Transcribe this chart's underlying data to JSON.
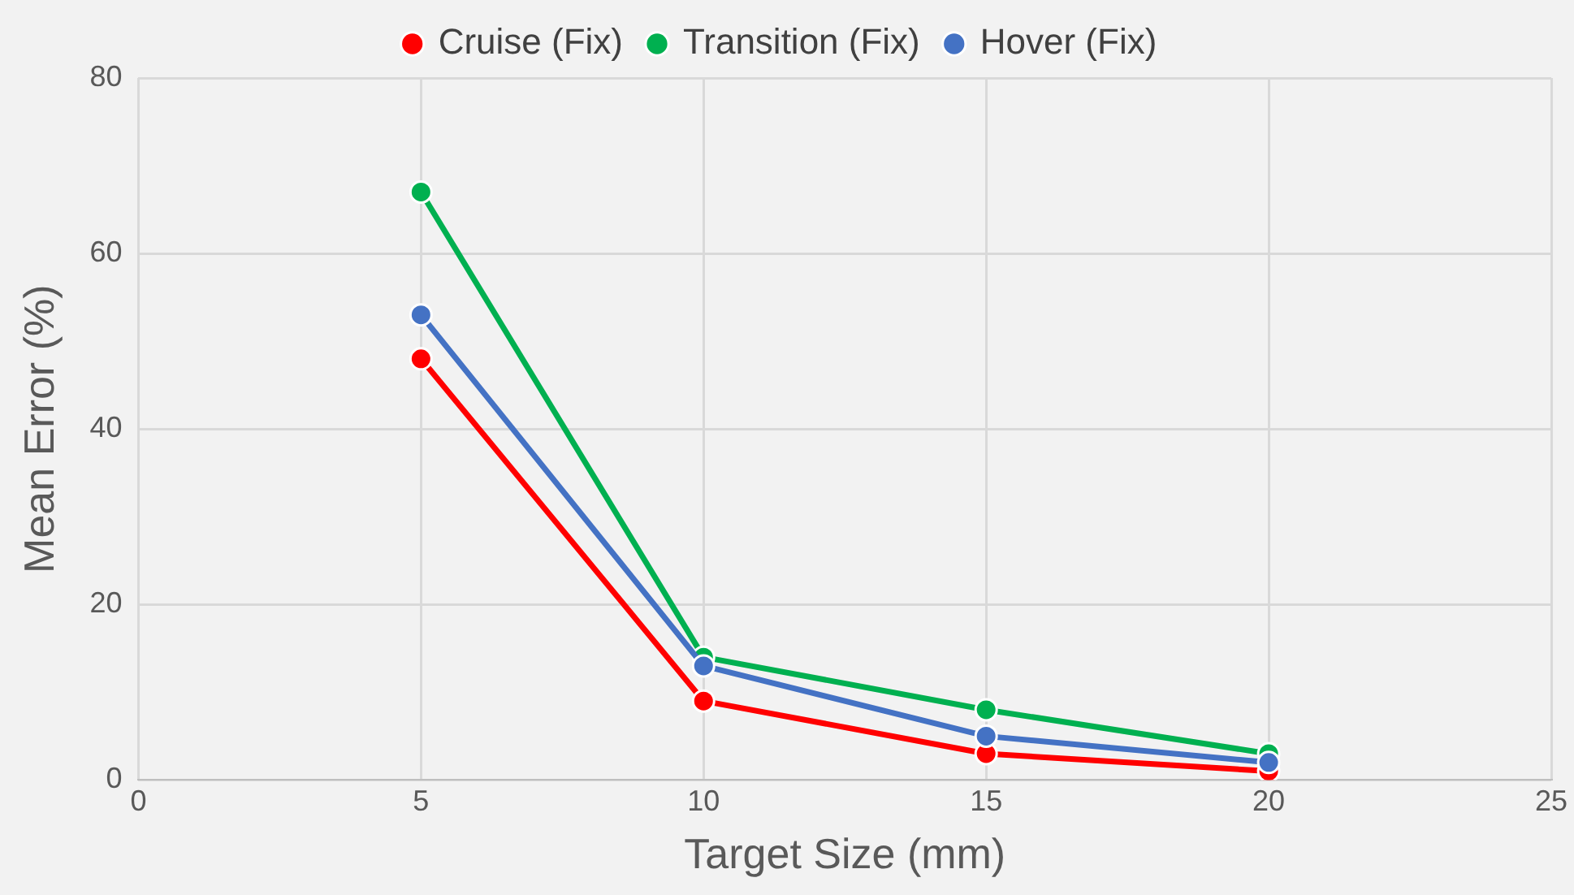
{
  "chart_data": {
    "type": "line",
    "xlabel": "Target Size (mm)",
    "ylabel": "Mean Error (%)",
    "x": [
      5,
      10,
      15,
      20
    ],
    "series": [
      {
        "name": "Cruise (Fix)",
        "color": "#ff0000",
        "values": [
          48,
          9,
          3,
          1
        ]
      },
      {
        "name": "Transition (Fix)",
        "color": "#00b050",
        "values": [
          67,
          14,
          8,
          3
        ]
      },
      {
        "name": "Hover (Fix)",
        "color": "#4472c4",
        "values": [
          53,
          13,
          5,
          2
        ]
      }
    ],
    "xlim": [
      0,
      25
    ],
    "xticks": [
      0,
      5,
      10,
      15,
      20,
      25
    ],
    "ylim": [
      0,
      80
    ],
    "yticks": [
      0,
      20,
      40,
      60,
      80
    ],
    "grid": true,
    "legend": "top",
    "marker": "circle",
    "line_style": "solid"
  }
}
